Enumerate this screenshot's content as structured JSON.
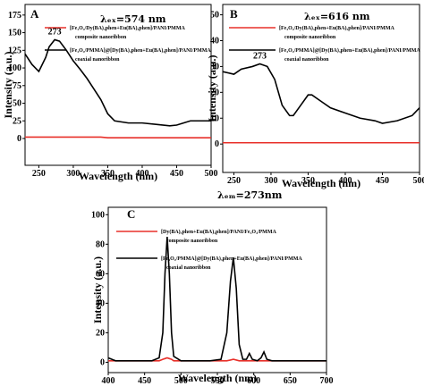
{
  "chart_data": [
    {
      "type": "line",
      "label": "A",
      "lambda": "λₑₓ=574 nm",
      "annotation": {
        "text": "273",
        "x": 273,
        "y": 140
      },
      "xlabel": "Wavelength (nm)",
      "ylabel": "Intensity (a.u.)",
      "xlim": [
        230,
        500
      ],
      "xticks": [
        250,
        300,
        350,
        400,
        450,
        500
      ],
      "ylim": [
        -38,
        190
      ],
      "yticks": [
        0,
        25,
        50,
        75,
        100,
        125,
        150,
        175
      ],
      "x": [
        230,
        240,
        250,
        260,
        265,
        273,
        280,
        290,
        300,
        310,
        320,
        330,
        340,
        350,
        360,
        380,
        400,
        420,
        440,
        450,
        460,
        470,
        480,
        500
      ],
      "series": [
        {
          "name": "[Fe₃O₄/Dy(BA)₃phen+Eu(BA)₃phen]/PANI/PMMA",
          "description": "composite nanoribbon",
          "color": "#e8302a",
          "values": [
            2,
            2,
            2,
            2,
            2,
            2,
            2,
            2,
            2,
            2,
            2,
            2,
            2,
            1,
            1,
            1,
            1,
            1,
            1,
            1,
            1,
            1,
            1,
            1
          ]
        },
        {
          "name": "[Fe₃O₄/PMMA]@[Dy(BA)₃phen+Eu(BA)₃phen]/PANI/PMMA",
          "description": "coaxial nanoribbon",
          "color": "#000000",
          "values": [
            120,
            105,
            95,
            115,
            130,
            140,
            138,
            125,
            110,
            98,
            85,
            70,
            55,
            35,
            25,
            22,
            22,
            20,
            18,
            19,
            22,
            25,
            25,
            25
          ]
        }
      ]
    },
    {
      "type": "line",
      "label": "B",
      "lambda": "λₑₓ=616 nm",
      "annotation": {
        "text": "273",
        "x": 285,
        "y": 31
      },
      "xlabel": "Wavelength (nm)",
      "ylabel": "Intensity (a.u.)",
      "xlim": [
        235,
        500
      ],
      "xticks": [
        250,
        300,
        350,
        400,
        450,
        500
      ],
      "ylim": [
        -11,
        54
      ],
      "yticks": [
        0,
        10,
        20,
        30,
        40,
        50
      ],
      "x": [
        235,
        250,
        260,
        275,
        285,
        295,
        305,
        315,
        325,
        330,
        340,
        350,
        355,
        365,
        380,
        400,
        420,
        440,
        450,
        470,
        490,
        500
      ],
      "series": [
        {
          "name": "[Fe₃O₄/Dy(BA)₃phen+Eu(BA)₃phen]/PANI/PMMA",
          "description": "composite nanoribbon",
          "color": "#e8302a",
          "values": [
            0.5,
            0.5,
            0.5,
            0.5,
            0.5,
            0.5,
            0.5,
            0.5,
            0.5,
            0.5,
            0.5,
            0.5,
            0.5,
            0.5,
            0.5,
            0.5,
            0.5,
            0.5,
            0.5,
            0.5,
            0.5,
            0.5
          ]
        },
        {
          "name": "[Fe₃O₄/PMMA]@[Dy(BA)₃phen+Eu(BA)₃phen]/PANI/PMMA",
          "description": "coaxial nanoribbon",
          "color": "#000000",
          "values": [
            28,
            27,
            29,
            30,
            31,
            30,
            25,
            15,
            11,
            11,
            15,
            19,
            19,
            17,
            14,
            12,
            10,
            9,
            8,
            9,
            11,
            14
          ]
        }
      ]
    },
    {
      "type": "line",
      "label": "C",
      "lambda": "λₑₘ=273nm",
      "xlabel": "Wavelength (nm)",
      "ylabel": "Intensity (a.u.)",
      "xlim": [
        400,
        700
      ],
      "xticks": [
        400,
        450,
        500,
        550,
        600,
        650,
        700
      ],
      "ylim": [
        -7,
        105
      ],
      "yticks": [
        0,
        20,
        40,
        60,
        80,
        100
      ],
      "x": [
        400,
        405,
        410,
        420,
        440,
        460,
        470,
        475,
        478,
        481,
        484,
        487,
        490,
        500,
        520,
        540,
        555,
        563,
        568,
        572,
        576,
        580,
        585,
        590,
        594,
        598,
        605,
        610,
        614,
        618,
        625,
        640,
        660,
        680,
        700
      ],
      "series": [
        {
          "name": "[Dy(BA)₃phen+Eu(BA)₃phen]/PANI/Fe₃O₄/PMMA",
          "description": "composite nanoribbon",
          "color": "#e8302a",
          "values": [
            1,
            1,
            1,
            1,
            1,
            1,
            1,
            2,
            2.5,
            3,
            2.5,
            2,
            1,
            1,
            1,
            1,
            1,
            1,
            1.5,
            2,
            1.5,
            1,
            1,
            1,
            1,
            1,
            1,
            1,
            1,
            1,
            1,
            1,
            1,
            1,
            1
          ]
        },
        {
          "name": "[Fe₃O₄/PMMA]@[Dy(BA)₃phen+Eu(BA)₃phen]/PANI/PMMA",
          "description": "coaxial nanoribbon",
          "color": "#000000",
          "values": [
            3,
            2,
            1,
            1,
            1,
            1,
            3,
            20,
            60,
            85,
            60,
            20,
            4,
            1,
            1,
            1,
            2,
            20,
            55,
            71,
            50,
            12,
            2,
            2,
            6,
            2,
            1,
            3,
            7,
            2,
            1,
            1,
            1,
            1,
            1
          ]
        }
      ]
    }
  ]
}
